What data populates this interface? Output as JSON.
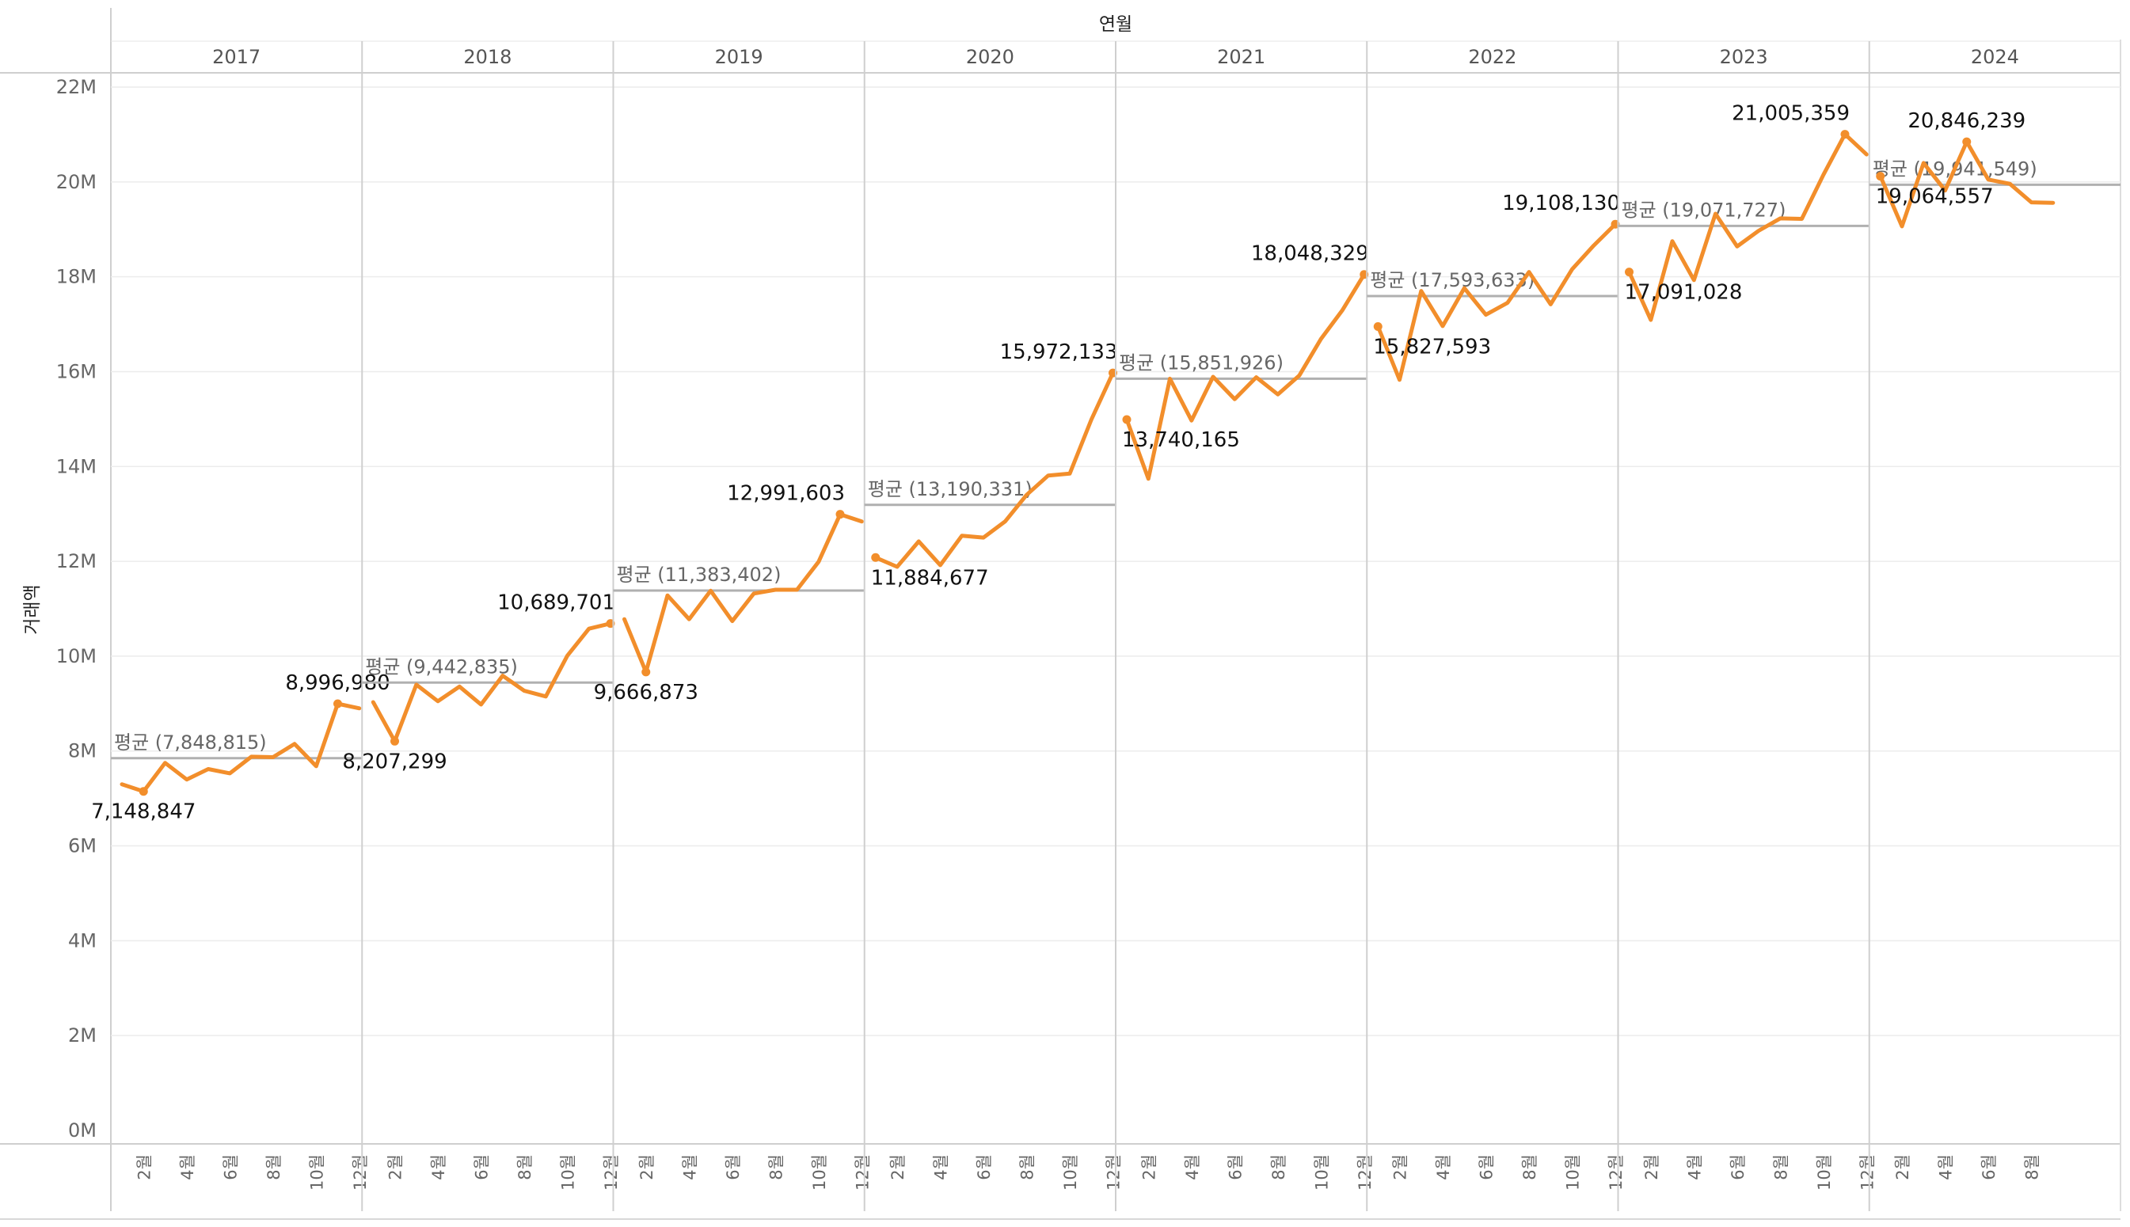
{
  "chart_data": {
    "type": "line",
    "column_header": "연월",
    "ylabel": "거래액",
    "ylim": [
      0,
      22000000
    ],
    "y_ticks": [
      "0M",
      "2M",
      "4M",
      "6M",
      "8M",
      "10M",
      "12M",
      "14M",
      "16M",
      "18M",
      "20M",
      "22M"
    ],
    "month_tick_labels": [
      "2월",
      "4월",
      "6월",
      "8월",
      "10월",
      "12월"
    ],
    "grid": true,
    "line_color": "#F28E2B",
    "avg_line_color": "#B0B0B0",
    "avg_prefix": "평균",
    "years": [
      {
        "year": "2017",
        "values": [
          7300000,
          7148847,
          7750000,
          7400000,
          7620000,
          7530000,
          7880000,
          7870000,
          8150000,
          7680000,
          8996980,
          8900000
        ],
        "avg": 7848815,
        "avg_label": "평균 (7,848,815)",
        "labels": [
          {
            "month": 2,
            "text": "7,148,847",
            "pos": "below"
          },
          {
            "month": 11,
            "text": "8,996,980",
            "pos": "above"
          }
        ]
      },
      {
        "year": "2018",
        "values": [
          9030000,
          8207299,
          9400000,
          9050000,
          9360000,
          8980000,
          9590000,
          9270000,
          9150000,
          10010000,
          10580000,
          10689701
        ],
        "avg": 9442835,
        "avg_label": "평균 (9,442,835)",
        "labels": [
          {
            "month": 2,
            "text": "8,207,299",
            "pos": "below"
          },
          {
            "month": 12,
            "text": "10,689,701",
            "pos": "above-left"
          }
        ]
      },
      {
        "year": "2019",
        "values": [
          10780000,
          9666873,
          11280000,
          10780000,
          11380000,
          10740000,
          11320000,
          11400000,
          11400000,
          11990000,
          12991603,
          12840000
        ],
        "avg": 11383402,
        "avg_label": "평균 (11,383,402)",
        "labels": [
          {
            "month": 2,
            "text": "9,666,873",
            "pos": "below"
          },
          {
            "month": 11,
            "text": "12,991,603",
            "pos": "above-left"
          }
        ]
      },
      {
        "year": "2020",
        "values": [
          12080000,
          11884677,
          12420000,
          11920000,
          12540000,
          12500000,
          12840000,
          13400000,
          13810000,
          13850000,
          14990000,
          15972133
        ],
        "avg": 13190331,
        "avg_label": "평균 (13,190,331)",
        "labels": [
          {
            "month": 1,
            "text": "11,884,677",
            "pos": "below"
          },
          {
            "month": 12,
            "text": "15,972,133",
            "pos": "above-left"
          }
        ]
      },
      {
        "year": "2021",
        "values": [
          14990000,
          13740165,
          15850000,
          14970000,
          15890000,
          15420000,
          15880000,
          15520000,
          15920000,
          16690000,
          17300000,
          18048329
        ],
        "avg": 15851926,
        "avg_label": "평균 (15,851,926)",
        "labels": [
          {
            "month": 1,
            "text": "13,740,165",
            "pos": "below"
          },
          {
            "month": 12,
            "text": "18,048,329",
            "pos": "above-left"
          }
        ]
      },
      {
        "year": "2022",
        "values": [
          16950000,
          15827593,
          17700000,
          16960000,
          17760000,
          17200000,
          17450000,
          18100000,
          17420000,
          18160000,
          18660000,
          19108130
        ],
        "avg": 17593633,
        "avg_label": "평균 (17,593,633)",
        "labels": [
          {
            "month": 1,
            "text": "15,827,593",
            "pos": "below"
          },
          {
            "month": 12,
            "text": "19,108,130",
            "pos": "above-left"
          }
        ]
      },
      {
        "year": "2023",
        "values": [
          18100000,
          17091028,
          18750000,
          17930000,
          19330000,
          18640000,
          18970000,
          19230000,
          19220000,
          20150000,
          21005359,
          20580000
        ],
        "avg": 19071727,
        "avg_label": "평균 (19,071,727)",
        "labels": [
          {
            "month": 1,
            "text": "17,091,028",
            "pos": "below"
          },
          {
            "month": 11,
            "text": "21,005,359",
            "pos": "above-left"
          }
        ]
      },
      {
        "year": "2024",
        "values": [
          20120000,
          19064557,
          20400000,
          19820000,
          20846239,
          20050000,
          19960000,
          19570000,
          19560000
        ],
        "avg": 19941549,
        "avg_label": "평균 (19,941,549)",
        "labels": [
          {
            "month": 1,
            "text": "19,064,557",
            "pos": "below"
          },
          {
            "month": 5,
            "text": "20,846,239",
            "pos": "above"
          }
        ]
      }
    ]
  }
}
